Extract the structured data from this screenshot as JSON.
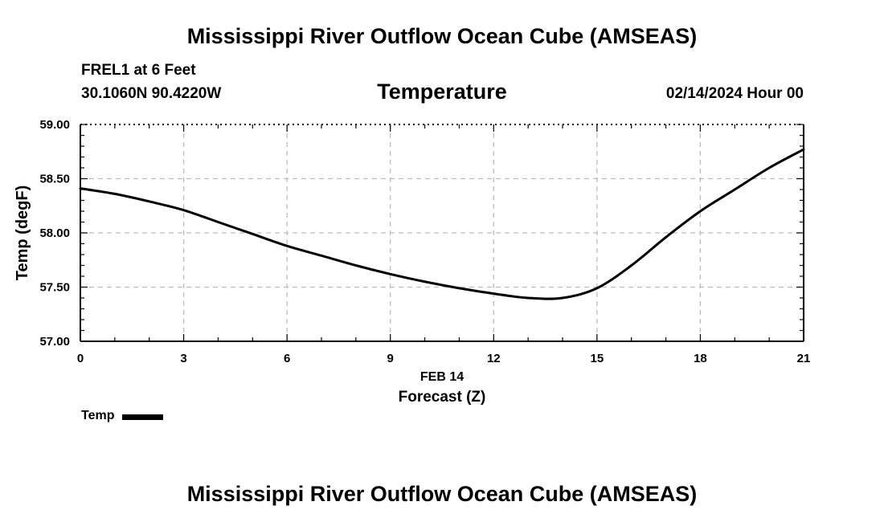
{
  "header": {
    "title": "Mississippi River Outflow Ocean Cube (AMSEAS)",
    "station": "FREL1 at 6 Feet",
    "coordinates": "30.1060N  90.4220W",
    "variable": "Temperature",
    "datetime": "02/14/2024 Hour 00"
  },
  "footer": {
    "title": "Mississippi River Outflow Ocean Cube (AMSEAS)"
  },
  "chart_data": {
    "type": "line",
    "title": "Temperature",
    "xlabel": "Forecast (Z)",
    "xsublabel": "FEB 14",
    "ylabel": "Temp (degF)",
    "xlim": [
      0,
      21
    ],
    "ylim": [
      57.0,
      59.0
    ],
    "xticks": [
      0,
      3,
      6,
      9,
      12,
      15,
      18,
      21
    ],
    "yticks": [
      57.0,
      57.5,
      58.0,
      58.5,
      59.0
    ],
    "ytick_labels": [
      "57.00",
      "57.50",
      "58.00",
      "58.50",
      "59.00"
    ],
    "grid": true,
    "legend_position": "bottom-left",
    "series": [
      {
        "name": "Temp",
        "color": "#000000",
        "x": [
          0,
          1,
          2,
          3,
          4,
          5,
          6,
          7,
          8,
          9,
          10,
          11,
          12,
          13,
          14,
          15,
          16,
          17,
          18,
          19,
          20,
          21
        ],
        "y": [
          58.41,
          58.36,
          58.29,
          58.21,
          58.1,
          57.99,
          57.88,
          57.79,
          57.7,
          57.62,
          57.55,
          57.49,
          57.44,
          57.4,
          57.4,
          57.49,
          57.7,
          57.96,
          58.2,
          58.4,
          58.6,
          58.77
        ]
      }
    ]
  }
}
